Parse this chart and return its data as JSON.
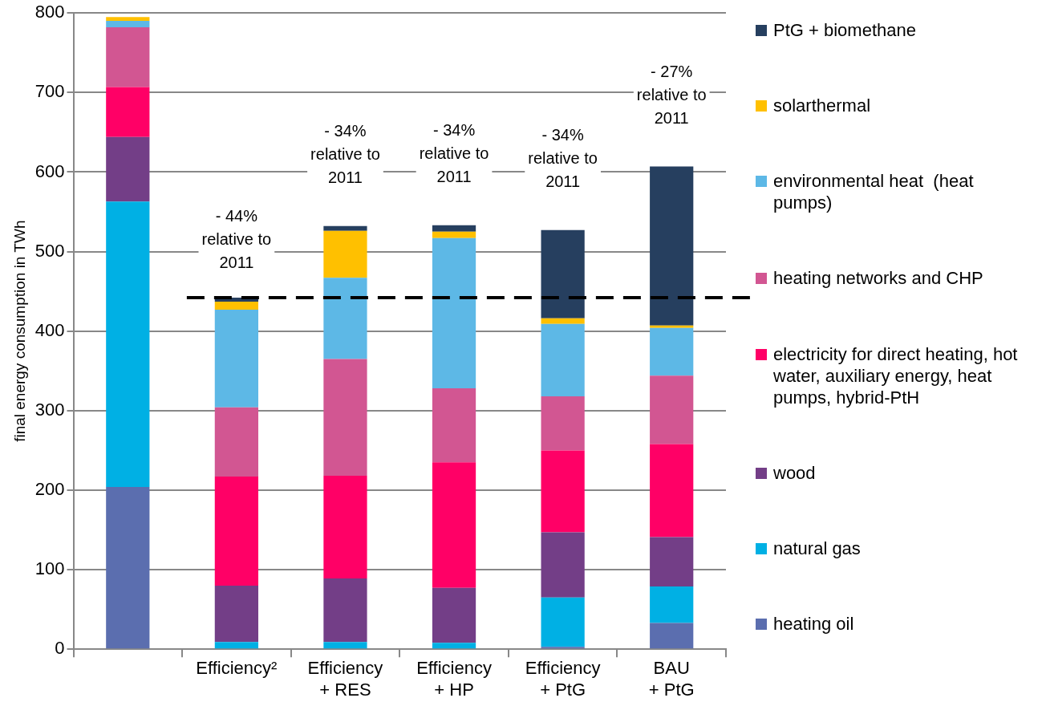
{
  "chart_data": {
    "type": "bar",
    "stacked": true,
    "ylabel": "final energy consumption in TWh",
    "categories": [
      null,
      "Efficiency²",
      "Efficiency\n+ RES",
      "Efficiency\n+ HP",
      "Efficiency\n+ PtG",
      "BAU\n+ PtG"
    ],
    "series": [
      {
        "name": "heating oil",
        "color": "#5b6eaf",
        "values": [
          204,
          0,
          0,
          0,
          3,
          33
        ]
      },
      {
        "name": "natural gas",
        "color": "#00b0e4",
        "values": [
          359,
          9,
          9,
          8,
          62,
          46
        ]
      },
      {
        "name": "wood",
        "color": "#733e87",
        "values": [
          81,
          71,
          80,
          69,
          82,
          62
        ]
      },
      {
        "name": "electricity for direct heating, hot water, auxiliary energy, heat pumps, hybrid-PtH",
        "color": "#ff0066",
        "values": [
          63,
          137,
          129,
          158,
          103,
          117
        ]
      },
      {
        "name": "heating networks and CHP",
        "color": "#d25692",
        "values": [
          75,
          87,
          147,
          93,
          68,
          86
        ]
      },
      {
        "name": "environmental heat  (heat pumps)",
        "color": "#5db8e6",
        "values": [
          8,
          123,
          102,
          189,
          91,
          60
        ]
      },
      {
        "name": "solarthermal",
        "color": "#ffc000",
        "values": [
          5,
          10,
          59,
          8,
          7,
          3
        ]
      },
      {
        "name": "PtG + biomethane",
        "color": "#263f5f",
        "values": [
          0,
          5,
          6,
          8,
          111,
          200
        ]
      }
    ],
    "ylim": [
      0,
      800
    ],
    "yticks": [
      0,
      100,
      200,
      300,
      400,
      500,
      600,
      700,
      800
    ],
    "grid": "y",
    "legend": "right",
    "ref_lines": [
      {
        "axis": "y",
        "value": 442,
        "color": "#000000",
        "line_style": "dashed"
      }
    ],
    "annotations": [
      "- 44%\nrelative to\n2011",
      "- 34%\nrelative to\n2011",
      "- 34%\nrelative to\n2011",
      "- 34%\nrelative to\n2011",
      "- 27%\nrelative to\n2011"
    ]
  }
}
